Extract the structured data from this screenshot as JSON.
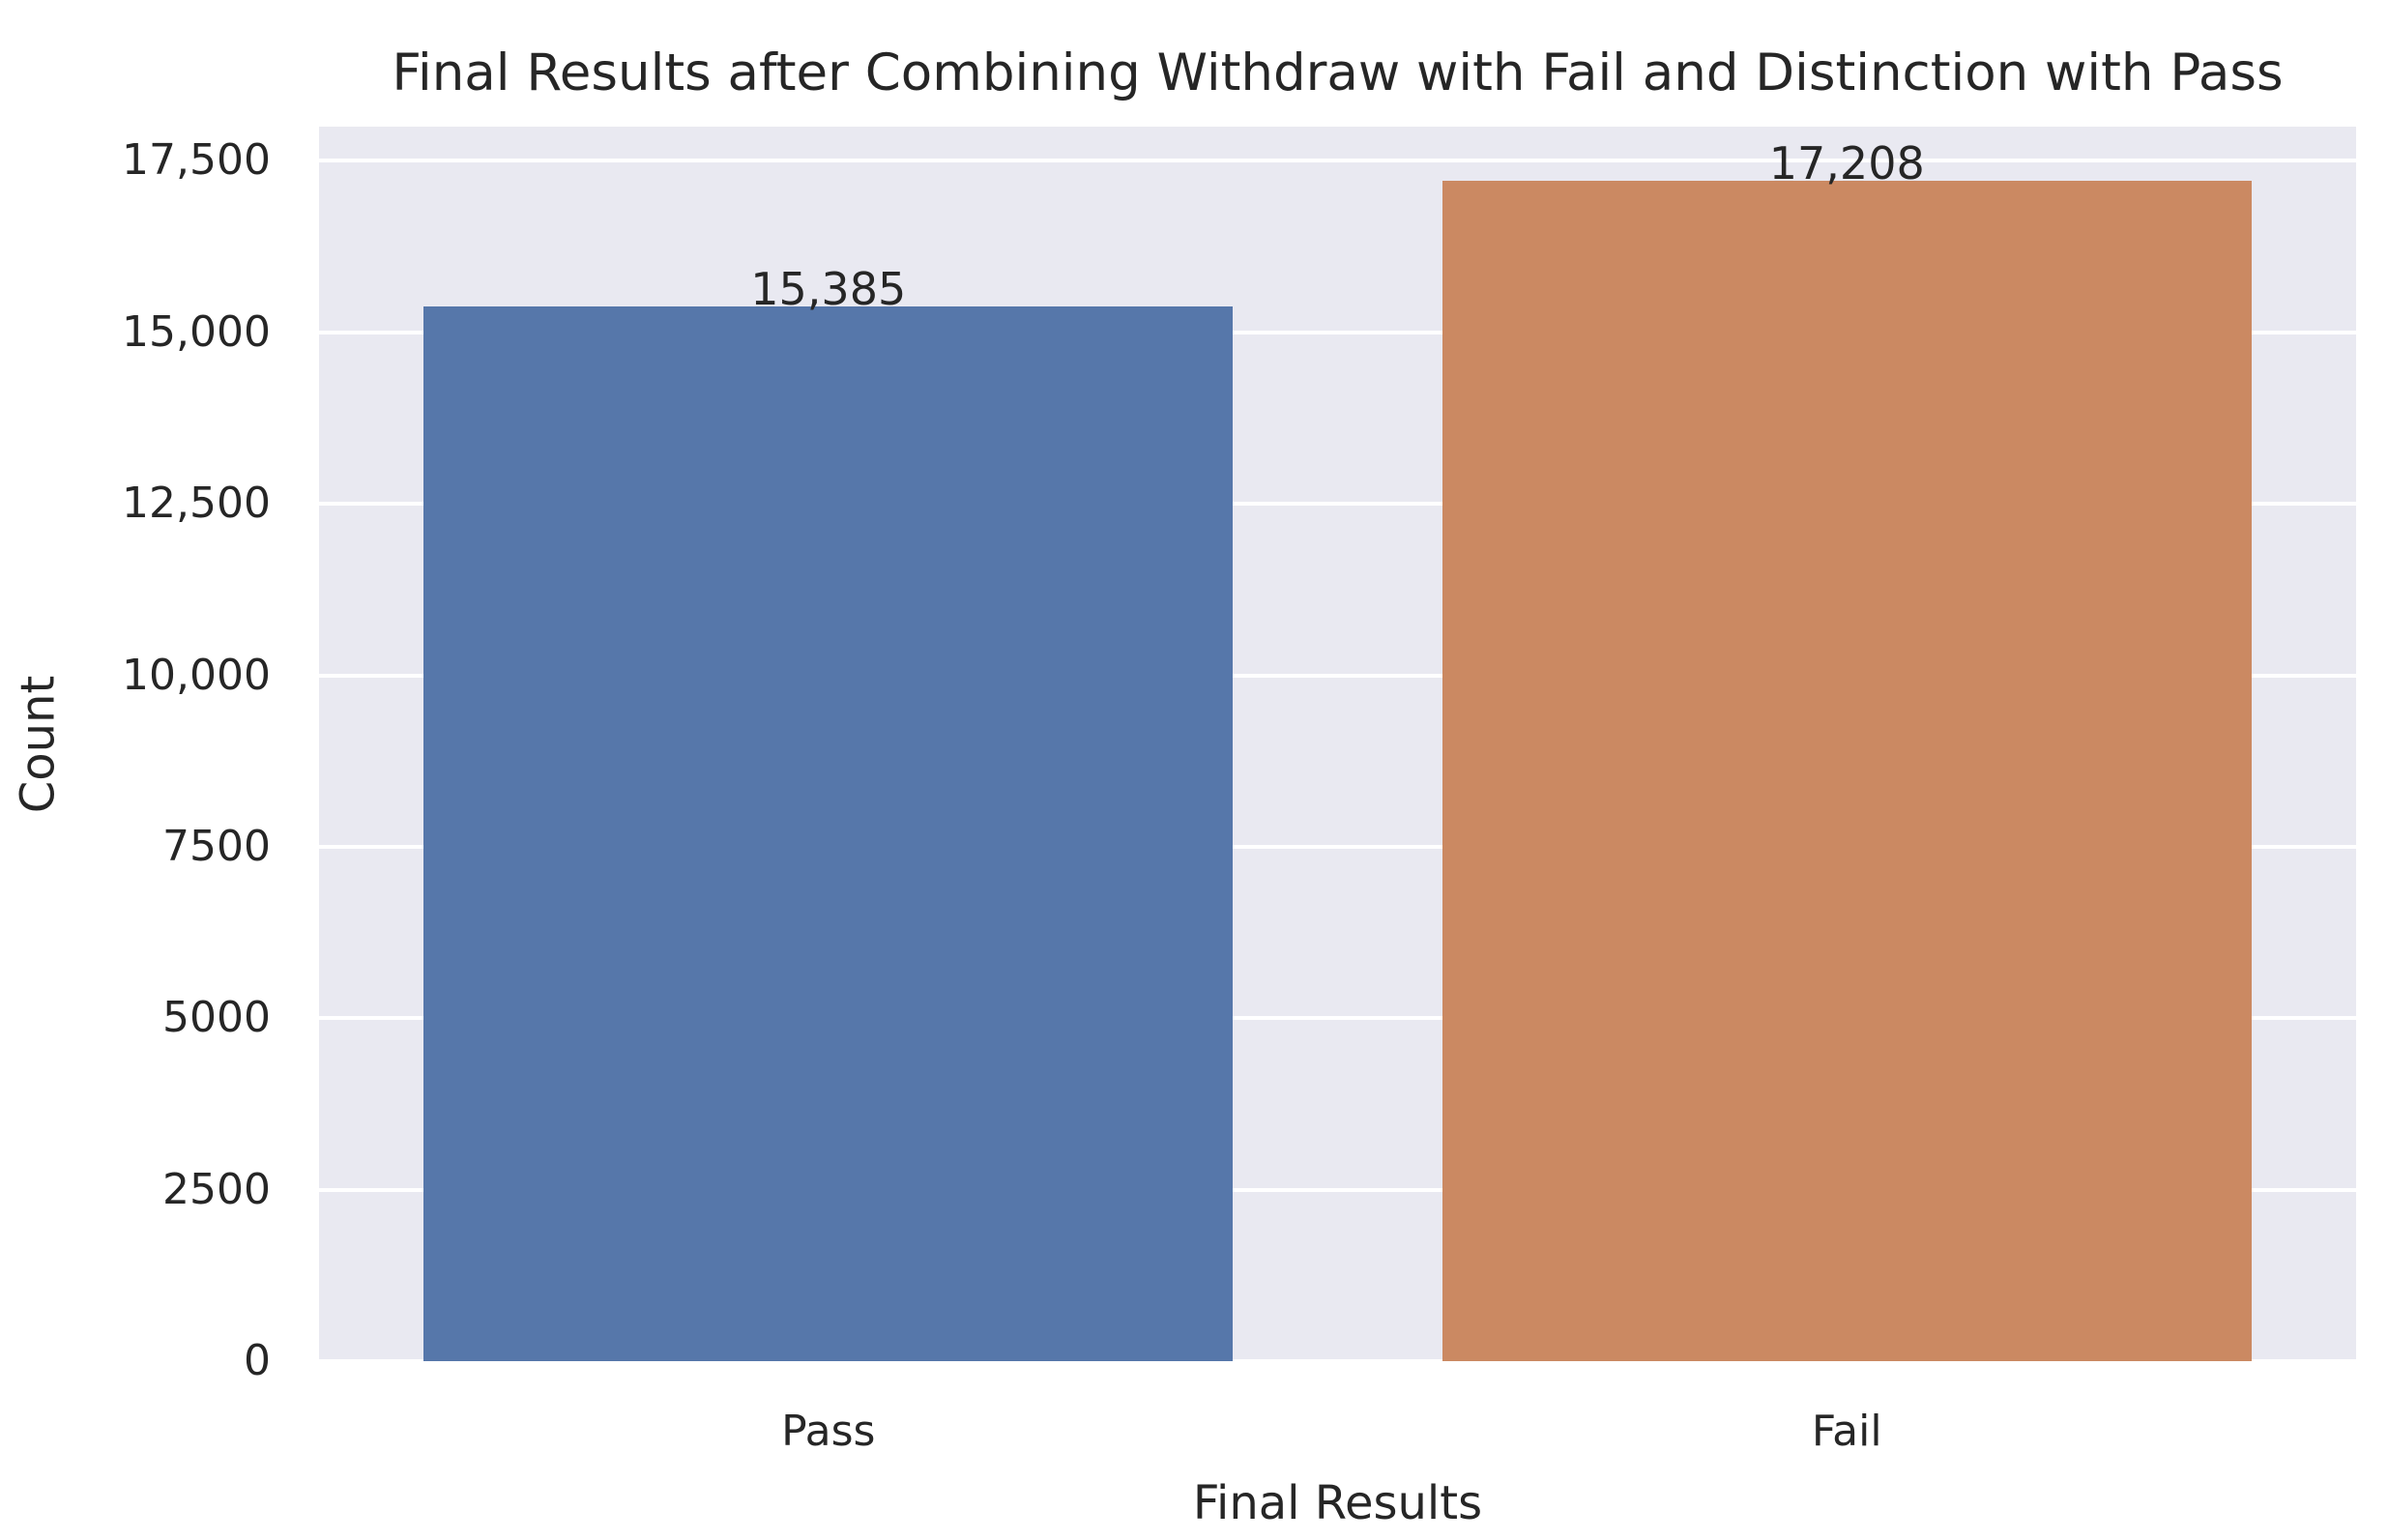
{
  "chart_data": {
    "type": "bar",
    "title": "Final Results after Combining Withdraw with Fail and Distinction with Pass",
    "xlabel": "Final Results",
    "ylabel": "Count",
    "categories": [
      "Pass",
      "Fail"
    ],
    "values": [
      15385,
      17208
    ],
    "value_labels": [
      "15,385",
      "17,208"
    ],
    "bar_colors": [
      "#5677aa",
      "#cb8962"
    ],
    "yticks": [
      0,
      2500,
      5000,
      7500,
      10000,
      12500,
      15000,
      17500
    ],
    "ytick_labels": [
      "0",
      "2500",
      "5000",
      "7500",
      "10,000",
      "12,500",
      "15,000",
      "17,500"
    ],
    "ylim": [
      0,
      18000
    ],
    "grid": {
      "horizontal": true,
      "color": "#ffffff"
    },
    "legend_position": "none",
    "plot_background": "#e9e9f1",
    "figure_background": "#ffffff",
    "text_color": "#262626"
  }
}
